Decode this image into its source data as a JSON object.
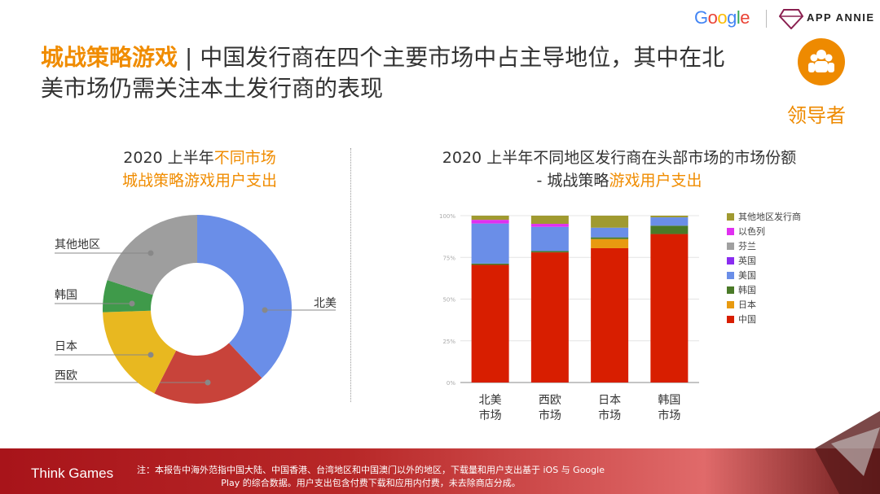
{
  "header": {
    "title_highlight": "城战策略游戏",
    "title_rest": " | 中国发行商在四个主要市场中占主导地位，其中在北美市场仍需关注本土发行商的表现",
    "google": "Google",
    "app_annie": "APP ANNIE",
    "role_icon": "people-group-icon",
    "role_label": "领导者",
    "accent": "#f08c00"
  },
  "left_chart_title": {
    "line1_a": "2020 上半年",
    "line1_b": "不同市场",
    "line2": "城战策略游戏用户支出"
  },
  "right_chart_title": {
    "line1": "2020 上半年不同地区发行商在头部市场的市场份额",
    "line2_a": "- 城战策略",
    "line2_b": "游戏用户支出"
  },
  "chart_data": [
    {
      "type": "pie",
      "variant": "donut",
      "slices": [
        {
          "label": "北美",
          "value": 38,
          "color": "#6a8ee8"
        },
        {
          "label": "西欧",
          "value": 19.5,
          "color": "#c8433a"
        },
        {
          "label": "日本",
          "value": 17,
          "color": "#e8b820"
        },
        {
          "label": "韩国",
          "value": 5.5,
          "color": "#3f9a4a"
        },
        {
          "label": "其他地区",
          "value": 20,
          "color": "#9e9e9e"
        }
      ]
    },
    {
      "type": "bar",
      "stacked": true,
      "categories": [
        "北美\n市场",
        "西欧\n市场",
        "日本\n市场",
        "韩国\n市场"
      ],
      "yticks": [
        "0%",
        "25%",
        "50%",
        "75%",
        "100%"
      ],
      "ylim": [
        0,
        100
      ],
      "legend_position": "right",
      "grid": true,
      "series": [
        {
          "name": "中国",
          "color": "#d81e00",
          "values": [
            70.5,
            78,
            80.5,
            89
          ]
        },
        {
          "name": "日本",
          "color": "#e89a10",
          "values": [
            0,
            0,
            5.5,
            0
          ]
        },
        {
          "name": "韩国",
          "color": "#4a7a28",
          "values": [
            0.8,
            0.8,
            1,
            5
          ]
        },
        {
          "name": "美国",
          "color": "#6a8ee8",
          "values": [
            24,
            14.5,
            5.8,
            5
          ]
        },
        {
          "name": "英国",
          "color": "#8a2cf0",
          "values": [
            0,
            0,
            0,
            0
          ]
        },
        {
          "name": "芬兰",
          "color": "#a0a0a0",
          "values": [
            0,
            0,
            0,
            0
          ]
        },
        {
          "name": "以色列",
          "color": "#e030f0",
          "values": [
            2.2,
            1.8,
            0,
            0
          ]
        },
        {
          "name": "其他地区发行商",
          "color": "#a09a30",
          "values": [
            2.5,
            4.9,
            7.2,
            1
          ]
        }
      ]
    }
  ],
  "footer": {
    "brand": "Think Games",
    "note": "注：本报告中海外范指中国大陆、中国香港、台湾地区和中国澳门以外的地区，下载量和用户支出基于 iOS 与 Google Play 的综合数据。用户支出包含付费下载和应用内付费，未去除商店分成。"
  }
}
